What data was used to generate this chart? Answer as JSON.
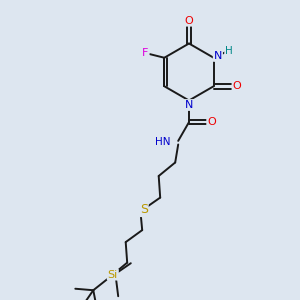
{
  "background_color": "#dde6f0",
  "bond_color": "#1a1a1a",
  "atom_colors": {
    "N": "#0000cc",
    "O": "#ee0000",
    "F": "#dd00dd",
    "S": "#bb9900",
    "Si": "#bb9900",
    "H": "#008888",
    "C": "#1a1a1a"
  },
  "figsize": [
    3.0,
    3.0
  ],
  "dpi": 100
}
